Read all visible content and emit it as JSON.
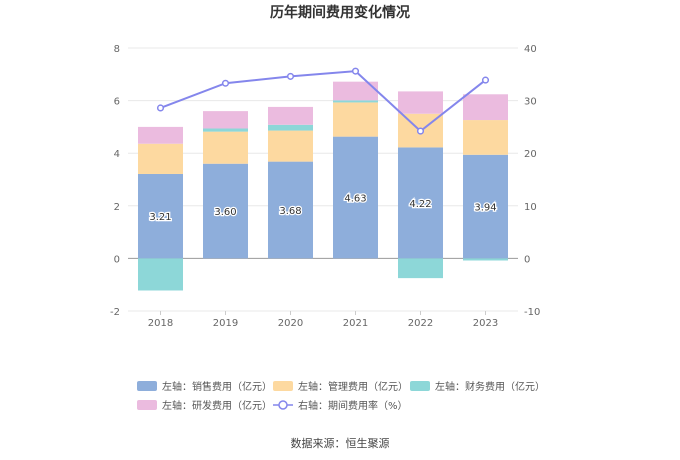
{
  "chart_data": {
    "type": "bar",
    "title": "历年期间费用变化情况",
    "categories": [
      "2018",
      "2019",
      "2020",
      "2021",
      "2022",
      "2023"
    ],
    "left_axis": {
      "min": -2,
      "max": 8,
      "ticks": [
        "-2",
        "0",
        "2",
        "4",
        "6",
        "8"
      ]
    },
    "right_axis": {
      "min": -10,
      "max": 40,
      "ticks": [
        "-10",
        "0",
        "10",
        "20",
        "30",
        "40"
      ]
    },
    "series": [
      {
        "name": "左轴：销售费用（亿元）",
        "color": "#8eaedb",
        "values": [
          3.21,
          3.6,
          3.68,
          4.63,
          4.22,
          3.94
        ],
        "labels": [
          "3.21",
          "3.60",
          "3.68",
          "4.63",
          "4.22",
          "3.94"
        ]
      },
      {
        "name": "左轴：管理费用（亿元）",
        "color": "#fdd9a0",
        "values": [
          1.15,
          1.22,
          1.18,
          1.3,
          1.28,
          1.32
        ]
      },
      {
        "name": "左轴：财务费用（亿元）",
        "color": "#8dd7d8",
        "values": [
          -1.22,
          0.12,
          0.22,
          0.08,
          -0.75,
          -0.08
        ]
      },
      {
        "name": "左轴：研发费用（亿元）",
        "color": "#ebbbdf",
        "values": [
          0.64,
          0.66,
          0.68,
          0.71,
          0.85,
          0.98
        ]
      }
    ],
    "line": {
      "name": "右轴：期间费用率（%）",
      "color": "#8486ec",
      "values": [
        28.6,
        33.3,
        34.6,
        35.6,
        24.2,
        33.9
      ]
    }
  },
  "source": "数据来源：恒生聚源"
}
